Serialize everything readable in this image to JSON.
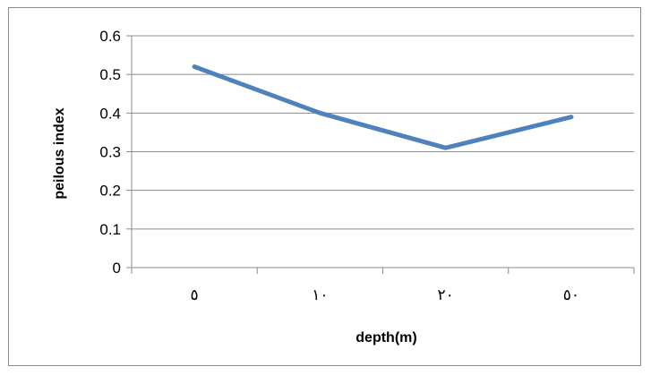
{
  "chart_data": {
    "type": "line",
    "title": "",
    "xlabel": "depth(m)",
    "ylabel": "peilous index",
    "categories": [
      "٥",
      "١٠",
      "٢٠",
      "٥٠"
    ],
    "series": [
      {
        "values": [
          0.52,
          0.4,
          0.31,
          0.39
        ]
      }
    ],
    "ylim": [
      0,
      0.6
    ],
    "yticks": [
      "0",
      "0.1",
      "0.2",
      "0.3",
      "0.4",
      "0.5",
      "0.6"
    ],
    "grid": true,
    "legend": "none",
    "colors": {
      "line": "#4f81bd",
      "grid": "#8c8c8c",
      "axis": "#8c8c8c"
    }
  }
}
